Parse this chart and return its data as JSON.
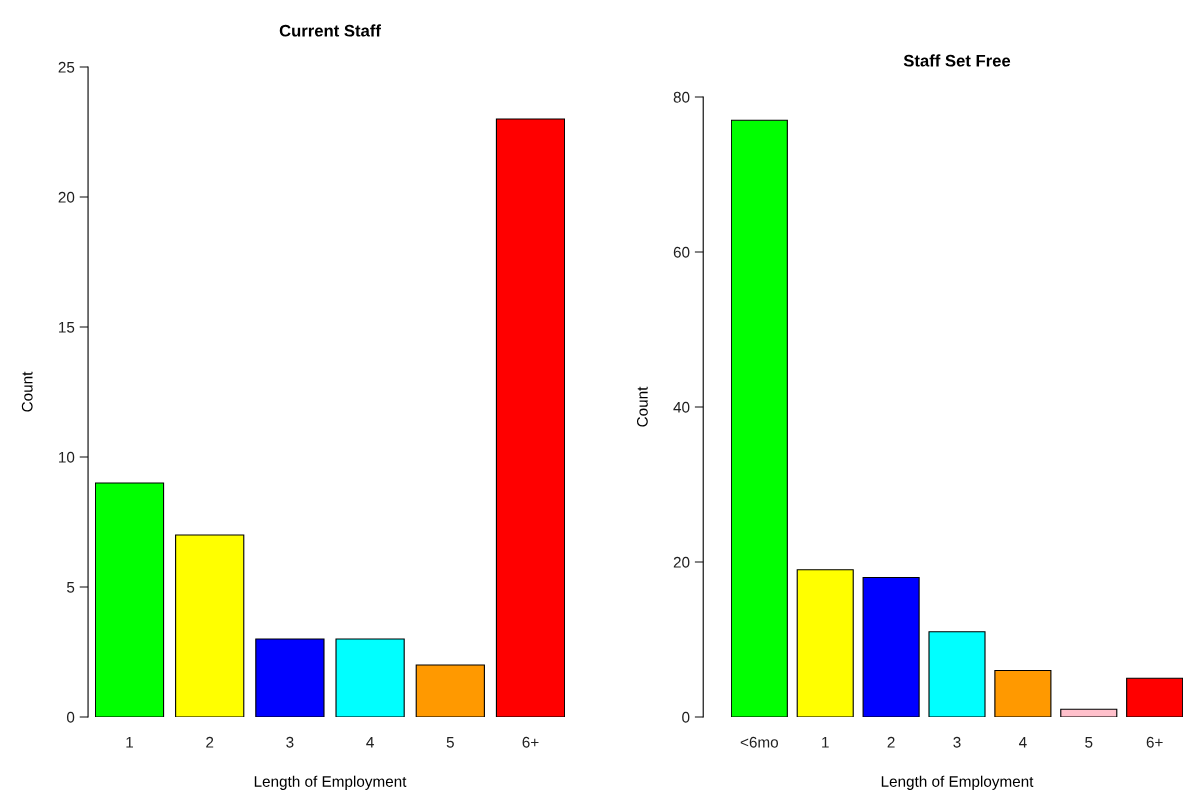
{
  "chart_data": [
    {
      "type": "bar",
      "title": "Current Staff",
      "xlabel": "Length of Employment",
      "ylabel": "Count",
      "categories": [
        "1",
        "2",
        "3",
        "4",
        "5",
        "6+"
      ],
      "values": [
        9,
        7,
        3,
        3,
        2,
        23
      ],
      "colors": [
        "#00ff00",
        "#ffff00",
        "#0000ff",
        "#00ffff",
        "#ff9900",
        "#ff0000"
      ],
      "ylim": [
        0,
        25
      ],
      "yticks": [
        0,
        5,
        10,
        15,
        20,
        25
      ],
      "grid": false,
      "legend": false
    },
    {
      "type": "bar",
      "title": "Staff Set Free",
      "xlabel": "Length of Employment",
      "ylabel": "Count",
      "categories": [
        "<6mo",
        "1",
        "2",
        "3",
        "4",
        "5",
        "6+"
      ],
      "values": [
        77,
        19,
        18,
        11,
        6,
        1,
        5
      ],
      "colors": [
        "#00ff00",
        "#ffff00",
        "#0000ff",
        "#00ffff",
        "#ff9900",
        "#ffc0cb",
        "#ff0000"
      ],
      "ylim": [
        0,
        80
      ],
      "yticks": [
        0,
        20,
        40,
        60,
        80
      ],
      "grid": false,
      "legend": false
    }
  ]
}
